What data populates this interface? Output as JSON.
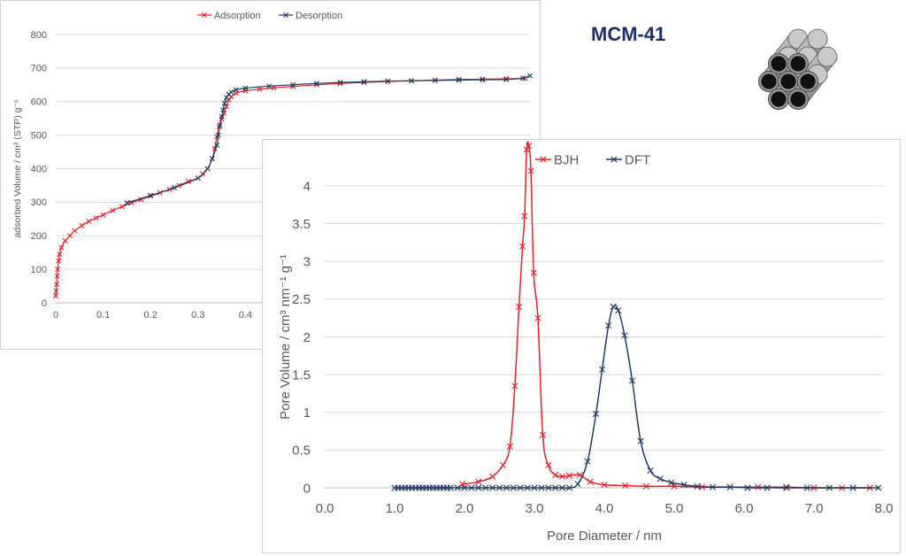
{
  "header": {
    "material_title": "MCM-41"
  },
  "colors": {
    "red": "#e8202a",
    "navy": "#1f3a68",
    "grid": "#d9d9d9",
    "axis_text": "#595959"
  },
  "icons": {
    "pore_illustration": "hexagonal-pore-tubes-icon"
  },
  "chart_data": [
    {
      "type": "line",
      "title": "",
      "xlabel": "",
      "ylabel": "adsorbed Volume / cm³ (STP) g⁻¹",
      "xlim": [
        0,
        1.0
      ],
      "ylim": [
        0,
        800
      ],
      "grid": true,
      "legend": "top-center",
      "x_ticks": [
        "0",
        "0.1",
        "0.2",
        "0.3",
        "0.4"
      ],
      "y_ticks": [
        "0",
        "100",
        "200",
        "300",
        "400",
        "500",
        "600",
        "700",
        "800"
      ],
      "series": [
        {
          "name": "Adsorption",
          "color": "#e8202a",
          "x": [
            0.0,
            0.001,
            0.002,
            0.003,
            0.004,
            0.006,
            0.008,
            0.012,
            0.02,
            0.03,
            0.04,
            0.055,
            0.07,
            0.085,
            0.1,
            0.12,
            0.14,
            0.16,
            0.18,
            0.2,
            0.22,
            0.24,
            0.26,
            0.28,
            0.3,
            0.31,
            0.32,
            0.33,
            0.335,
            0.34,
            0.345,
            0.35,
            0.355,
            0.36,
            0.365,
            0.37,
            0.38,
            0.4,
            0.43,
            0.46,
            0.5,
            0.55,
            0.6,
            0.65,
            0.7,
            0.75,
            0.8,
            0.85,
            0.9,
            0.95,
            0.99
          ],
          "y": [
            20,
            35,
            55,
            80,
            100,
            125,
            145,
            165,
            185,
            200,
            215,
            230,
            243,
            253,
            262,
            275,
            287,
            298,
            308,
            318,
            328,
            338,
            350,
            362,
            372,
            385,
            400,
            430,
            460,
            495,
            525,
            548,
            565,
            585,
            605,
            615,
            625,
            632,
            637,
            641,
            645,
            650,
            654,
            657,
            660,
            662,
            664,
            666,
            667,
            668,
            669
          ]
        },
        {
          "name": "Desorption",
          "color": "#1f3a68",
          "x": [
            0.15,
            0.2,
            0.25,
            0.3,
            0.32,
            0.33,
            0.34,
            0.343,
            0.346,
            0.35,
            0.353,
            0.356,
            0.36,
            0.365,
            0.37,
            0.38,
            0.4,
            0.45,
            0.5,
            0.55,
            0.6,
            0.65,
            0.7,
            0.75,
            0.8,
            0.85,
            0.9,
            0.95,
            0.985,
            1.0
          ],
          "y": [
            298,
            320,
            343,
            372,
            400,
            430,
            470,
            500,
            530,
            555,
            575,
            595,
            612,
            622,
            628,
            635,
            640,
            646,
            650,
            654,
            657,
            659,
            661,
            662,
            663,
            664,
            665,
            666,
            670,
            677
          ]
        }
      ]
    },
    {
      "type": "line",
      "title": "",
      "xlabel": "Pore Diameter / nm",
      "ylabel": "Pore Volume / cm³ nm⁻¹ g⁻¹",
      "xlim": [
        0,
        8
      ],
      "ylim": [
        0,
        4
      ],
      "grid": true,
      "legend": "top-center",
      "x_ticks": [
        "0.0",
        "1.0",
        "2.0",
        "3.0",
        "4.0",
        "5.0",
        "6.0",
        "7.0",
        "8.0"
      ],
      "y_ticks": [
        "0",
        "0.5",
        "1",
        "1.5",
        "2",
        "2.5",
        "3",
        "3.5",
        "4"
      ],
      "series": [
        {
          "name": "BJH",
          "color": "#e8202a",
          "x": [
            1.97,
            2.2,
            2.4,
            2.55,
            2.65,
            2.72,
            2.78,
            2.83,
            2.86,
            2.89,
            2.92,
            2.95,
            2.99,
            3.05,
            3.12,
            3.2,
            3.3,
            3.4,
            3.5,
            3.65,
            3.8,
            4.0,
            4.3,
            4.6,
            5.0,
            5.4,
            5.8,
            6.2,
            6.6,
            7.0,
            7.4,
            7.8
          ],
          "y": [
            0.05,
            0.08,
            0.15,
            0.3,
            0.55,
            1.35,
            2.4,
            3.2,
            3.6,
            4.48,
            4.53,
            4.2,
            2.85,
            2.25,
            0.7,
            0.3,
            0.17,
            0.15,
            0.16,
            0.17,
            0.08,
            0.04,
            0.03,
            0.02,
            0.02,
            0.01,
            0.01,
            0.01,
            0.01,
            0.0,
            0.0,
            0.0
          ]
        },
        {
          "name": "DFT",
          "color": "#1f3a68",
          "x": [
            1.0,
            1.05,
            1.1,
            1.15,
            1.2,
            1.25,
            1.3,
            1.35,
            1.4,
            1.45,
            1.5,
            1.55,
            1.6,
            1.65,
            1.7,
            1.75,
            1.8,
            1.9,
            2.0,
            2.1,
            2.2,
            2.3,
            2.4,
            2.5,
            2.6,
            2.7,
            2.8,
            2.9,
            3.0,
            3.1,
            3.2,
            3.3,
            3.4,
            3.5,
            3.62,
            3.76,
            3.88,
            3.97,
            4.06,
            4.13,
            4.2,
            4.29,
            4.4,
            4.52,
            4.66,
            4.8,
            4.96,
            5.14,
            5.33,
            5.55,
            5.8,
            6.05,
            6.33,
            6.61,
            6.9,
            7.22,
            7.56,
            7.92
          ],
          "y": [
            0,
            0,
            0,
            0,
            0,
            0,
            0,
            0,
            0,
            0,
            0,
            0,
            0,
            0,
            0,
            0,
            0,
            0,
            0,
            0,
            0,
            0,
            0,
            0,
            0,
            0,
            0,
            0,
            0,
            0,
            0,
            0,
            0,
            0,
            0.05,
            0.35,
            0.98,
            1.57,
            2.15,
            2.4,
            2.35,
            2.02,
            1.42,
            0.62,
            0.23,
            0.12,
            0.07,
            0.04,
            0.02,
            0.01,
            0.01,
            0.0,
            0.0,
            0.0,
            0.0,
            0.0,
            0.0,
            0.0
          ]
        }
      ]
    }
  ]
}
